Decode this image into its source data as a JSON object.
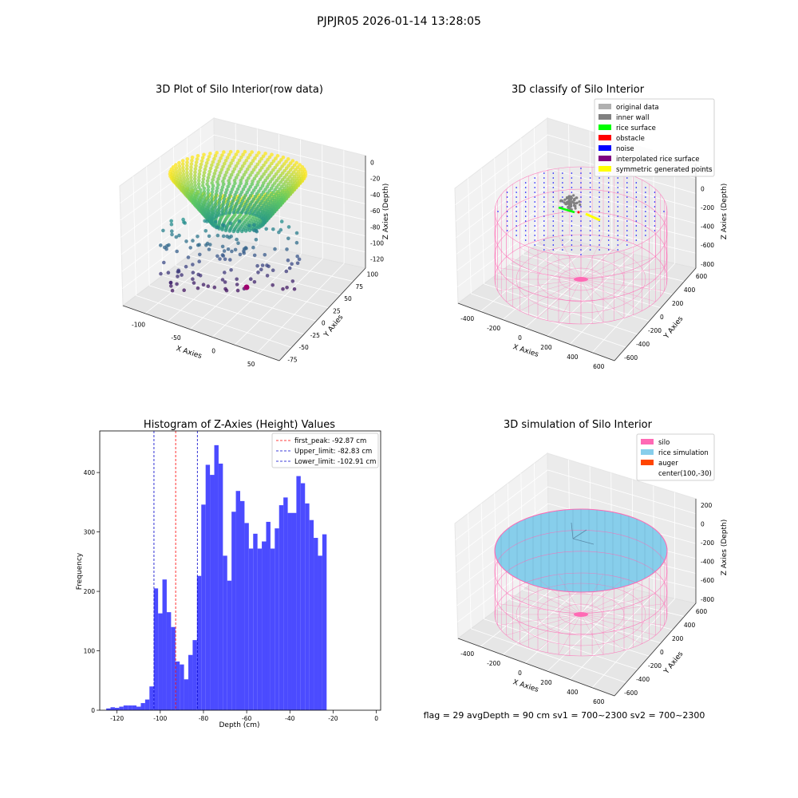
{
  "suptitle": "PJPJR05 2026-01-14 13:28:05",
  "footer": "flag = 29  avgDepth = 90 cm    sv1 = 700~2300  sv2 = 700~2300",
  "chart_data": [
    {
      "type": "scatter",
      "title": "3D Plot of Silo Interior(row data)",
      "xlabel": "X Axies",
      "ylabel": "Y Axies",
      "zlabel": "Z Axies (Depth)",
      "x_ticks": [
        "-100",
        "-50",
        "0",
        "50"
      ],
      "y_ticks": [
        "-75",
        "-50",
        "-25",
        "0",
        "25",
        "50",
        "75",
        "100"
      ],
      "z_ticks": [
        "0",
        "-20",
        "-40",
        "-60",
        "-80",
        "-100",
        "-120"
      ],
      "zlim": [
        -130,
        5
      ],
      "colormap": "viridis"
    },
    {
      "type": "scatter",
      "title": "3D classify of Silo Interior",
      "xlabel": "X Axies",
      "ylabel": "Y Axies",
      "zlabel": "Z Axies (Depth)",
      "x_ticks": [
        "-400",
        "-200",
        "0",
        "200",
        "400",
        "600"
      ],
      "y_ticks": [
        "-600",
        "-400",
        "-200",
        "0",
        "200",
        "400",
        "600"
      ],
      "z_ticks": [
        "200",
        "0",
        "-200",
        "-400",
        "-600",
        "-800"
      ],
      "legend_position": "top-right",
      "legend": [
        {
          "label": "original data",
          "color": "#b0b0b0"
        },
        {
          "label": "inner wall",
          "color": "#808080"
        },
        {
          "label": "rice surface",
          "color": "#00ff00"
        },
        {
          "label": "obstacle",
          "color": "#ff0000"
        },
        {
          "label": "noise",
          "color": "#0000ff"
        },
        {
          "label": "interpolated rice surface",
          "color": "#800080"
        },
        {
          "label": "symmetric generated points",
          "color": "#ffff00"
        }
      ]
    },
    {
      "type": "bar",
      "title": "Histogram of Z-Axies (Height) Values",
      "xlabel": "Depth (cm)",
      "ylabel": "Frequency",
      "xlim": [
        -128,
        2
      ],
      "ylim": [
        0,
        470
      ],
      "x_ticks": [
        -120,
        -100,
        -80,
        -60,
        -40,
        -20,
        0
      ],
      "y_ticks": [
        0,
        100,
        200,
        300,
        400
      ],
      "bin_start": -125,
      "bin_width": 2,
      "values": [
        3,
        5,
        4,
        6,
        8,
        8,
        8,
        6,
        12,
        18,
        40,
        205,
        163,
        220,
        165,
        140,
        82,
        77,
        52,
        93,
        118,
        226,
        346,
        413,
        396,
        446,
        415,
        260,
        218,
        334,
        369,
        352,
        315,
        272,
        297,
        272,
        284,
        317,
        272,
        306,
        345,
        358,
        332,
        332,
        394,
        382,
        348,
        320,
        290,
        260,
        296
      ],
      "bar_color": "#4b4bff",
      "vlines": [
        {
          "label": "first_peak: -92.87 cm",
          "x": -92.87,
          "color": "#ff0000"
        },
        {
          "label": "Upper_limit: -82.83 cm",
          "x": -82.83,
          "color": "#0000cc"
        },
        {
          "label": "Lower_limit: -102.91 cm",
          "x": -102.91,
          "color": "#0000cc"
        }
      ],
      "legend_position": "top-right"
    },
    {
      "type": "surface",
      "title": "3D simulation of Silo Interior",
      "xlabel": "X Axies",
      "ylabel": "Y Axies",
      "zlabel": "Z Axies (Depth)",
      "x_ticks": [
        "-400",
        "-200",
        "0",
        "200",
        "400",
        "600"
      ],
      "y_ticks": [
        "-600",
        "-400",
        "-200",
        "0",
        "200",
        "400",
        "600"
      ],
      "z_ticks": [
        "200",
        "0",
        "-200",
        "-400",
        "-600",
        "-800"
      ],
      "legend_position": "top-right",
      "legend": [
        {
          "label": "silo",
          "color": "#ff69b4"
        },
        {
          "label": "rice simulation",
          "color": "#87ceeb"
        },
        {
          "label": "auger",
          "color": "#ff4500"
        },
        {
          "label": "center(100,-30)",
          "color": ""
        }
      ]
    }
  ]
}
